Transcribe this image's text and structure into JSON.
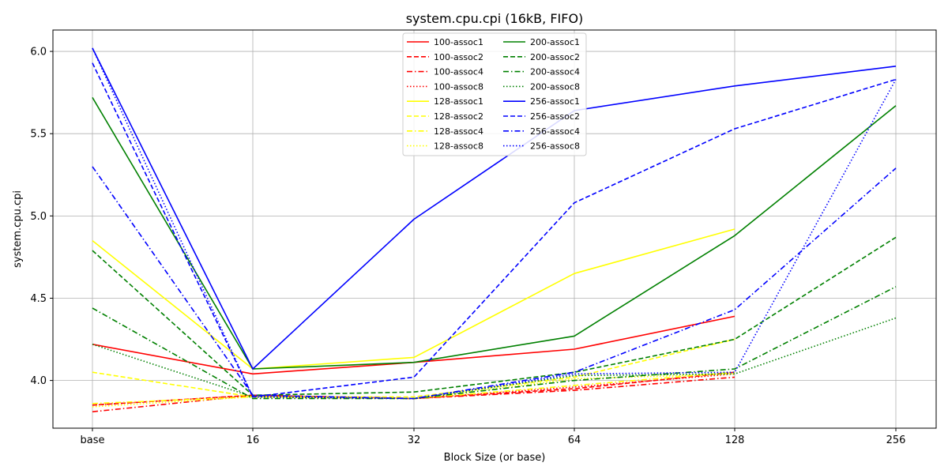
{
  "chart_data": {
    "type": "line",
    "title": "system.cpu.cpi (16kB, FIFO)",
    "xlabel": "Block Size (or base)",
    "ylabel": "system.cpu.cpi",
    "categories": [
      "base",
      "16",
      "32",
      "64",
      "128",
      "256"
    ],
    "y_ticks": [
      "4.0",
      "4.5",
      "5.0",
      "5.5",
      "6.0"
    ],
    "ylim": [
      3.71,
      6.13
    ],
    "grid": true,
    "legend_position": "top-center",
    "legend_columns": 2,
    "series": [
      {
        "name": "100-assoc1",
        "color": "#ff0000",
        "dash": "solid",
        "values": [
          4.22,
          4.04,
          4.11,
          4.19,
          4.39,
          null
        ]
      },
      {
        "name": "100-assoc2",
        "color": "#ff0000",
        "dash": "dashed",
        "values": [
          3.85,
          3.91,
          3.89,
          3.95,
          4.05,
          null
        ]
      },
      {
        "name": "100-assoc4",
        "color": "#ff0000",
        "dash": "dashdot",
        "values": [
          3.81,
          3.91,
          3.89,
          3.94,
          4.02,
          null
        ]
      },
      {
        "name": "100-assoc8",
        "color": "#ff0000",
        "dash": "dotted",
        "values": [
          3.85,
          3.91,
          3.89,
          3.96,
          4.04,
          null
        ]
      },
      {
        "name": "128-assoc1",
        "color": "#ffff00",
        "dash": "solid",
        "values": [
          4.85,
          4.07,
          4.14,
          4.65,
          4.92,
          null
        ]
      },
      {
        "name": "128-assoc2",
        "color": "#ffff00",
        "dash": "dashed",
        "values": [
          4.05,
          3.9,
          3.9,
          4.02,
          4.25,
          null
        ]
      },
      {
        "name": "128-assoc4",
        "color": "#ffff00",
        "dash": "dashdot",
        "values": [
          3.86,
          3.9,
          3.89,
          3.97,
          4.05,
          null
        ]
      },
      {
        "name": "128-assoc8",
        "color": "#ffff00",
        "dash": "dotted",
        "values": [
          3.84,
          3.9,
          3.89,
          4.01,
          4.04,
          null
        ]
      },
      {
        "name": "200-assoc1",
        "color": "#008000",
        "dash": "solid",
        "values": [
          5.72,
          4.07,
          4.11,
          4.27,
          4.88,
          5.67
        ]
      },
      {
        "name": "200-assoc2",
        "color": "#008000",
        "dash": "dashed",
        "values": [
          4.79,
          3.91,
          3.93,
          4.05,
          4.25,
          4.87
        ]
      },
      {
        "name": "200-assoc4",
        "color": "#008000",
        "dash": "dashdot",
        "values": [
          4.44,
          3.89,
          3.89,
          4.0,
          4.07,
          4.57
        ]
      },
      {
        "name": "200-assoc8",
        "color": "#008000",
        "dash": "dotted",
        "values": [
          4.22,
          3.9,
          3.89,
          4.03,
          4.04,
          4.38
        ]
      },
      {
        "name": "256-assoc1",
        "color": "#0000ff",
        "dash": "solid",
        "values": [
          6.02,
          4.07,
          4.98,
          5.64,
          5.79,
          5.91
        ]
      },
      {
        "name": "256-assoc2",
        "color": "#0000ff",
        "dash": "dashed",
        "values": [
          5.93,
          3.9,
          4.02,
          5.08,
          5.53,
          5.83
        ]
      },
      {
        "name": "256-assoc4",
        "color": "#0000ff",
        "dash": "dashdot",
        "values": [
          5.3,
          3.91,
          3.89,
          4.05,
          4.43,
          5.29
        ]
      },
      {
        "name": "256-assoc8",
        "color": "#0000ff",
        "dash": "dotted",
        "values": [
          6.02,
          3.9,
          3.89,
          4.04,
          4.05,
          5.83
        ]
      }
    ]
  }
}
